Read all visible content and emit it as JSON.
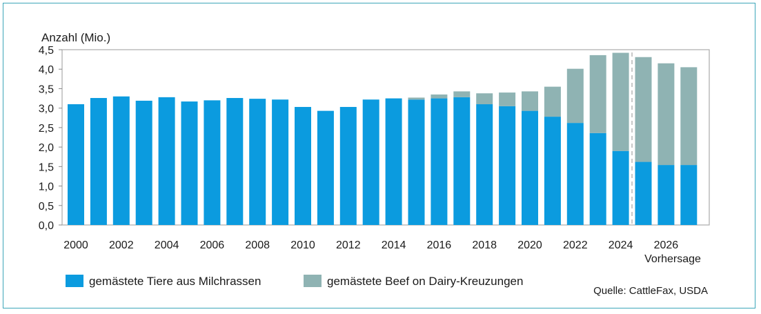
{
  "chart_data": {
    "type": "bar",
    "stacked": true,
    "ylabel": "Anzahl (Mio.)",
    "ylim": [
      0,
      4.5
    ],
    "yticks": [
      "0,0",
      "0,5",
      "1,0",
      "1,5",
      "2,0",
      "2,5",
      "3,0",
      "3,5",
      "4,0",
      "4,5"
    ],
    "categories": [
      "2000",
      "2001",
      "2002",
      "2003",
      "2004",
      "2005",
      "2006",
      "2007",
      "2008",
      "2009",
      "2010",
      "2011",
      "2012",
      "2013",
      "2014",
      "2015",
      "2016",
      "2017",
      "2018",
      "2019",
      "2020",
      "2021",
      "2022",
      "2023",
      "2024",
      "2025",
      "2026",
      "2027"
    ],
    "xtick_labels": [
      "2000",
      "2002",
      "2004",
      "2006",
      "2008",
      "2010",
      "2012",
      "2014",
      "2016",
      "2018",
      "2020",
      "2022",
      "2024",
      "2026"
    ],
    "forecast_label": "Vorhersage",
    "forecast_start": "2025",
    "grid": false,
    "series": [
      {
        "name": "gemästete Tiere aus Milchrassen",
        "color": "#0b9bdf",
        "values": [
          3.1,
          3.26,
          3.3,
          3.19,
          3.28,
          3.17,
          3.2,
          3.26,
          3.24,
          3.22,
          3.03,
          2.93,
          3.03,
          3.22,
          3.25,
          3.22,
          3.25,
          3.28,
          3.1,
          3.05,
          2.93,
          2.78,
          2.62,
          2.36,
          1.9,
          1.62,
          1.54,
          1.54
        ]
      },
      {
        "name": "gemästete Beef on Dairy-Kreuzungen",
        "color": "#8fb3b3",
        "values": [
          0,
          0,
          0,
          0,
          0,
          0,
          0,
          0,
          0,
          0,
          0,
          0,
          0,
          0,
          0,
          0.05,
          0.1,
          0.15,
          0.28,
          0.35,
          0.5,
          0.77,
          1.39,
          2.0,
          2.52,
          2.69,
          2.61,
          2.51
        ]
      }
    ],
    "legend_position": "bottom-left",
    "source": "Quelle: CattleFax, USDA"
  }
}
